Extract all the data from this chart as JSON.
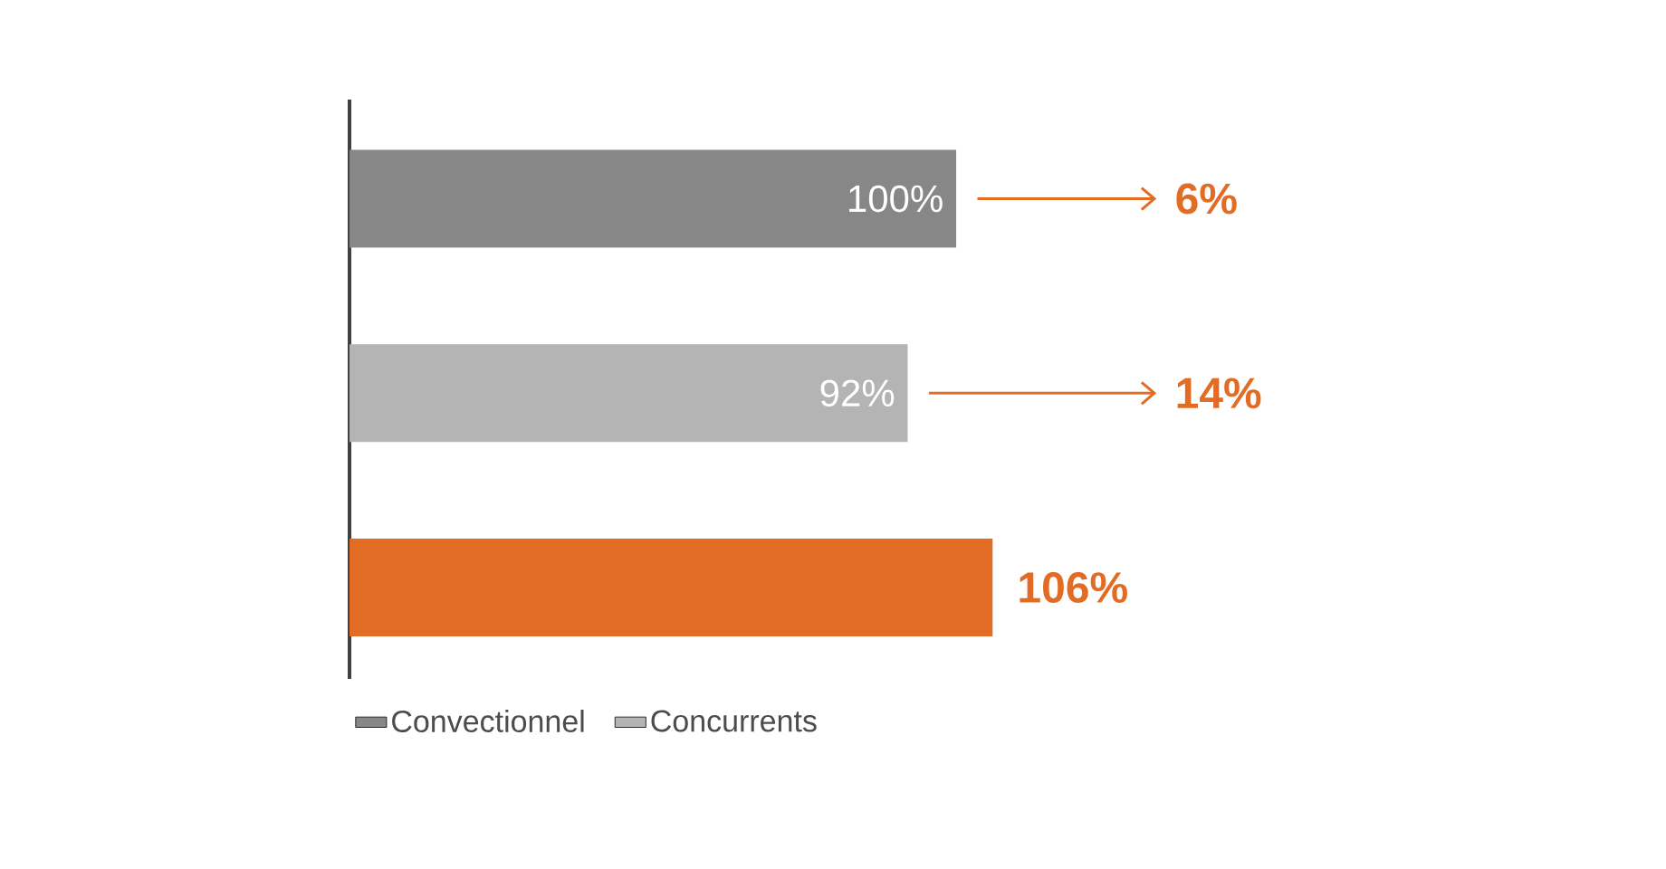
{
  "chart_data": {
    "type": "bar",
    "orientation": "horizontal",
    "stacked": true,
    "categories": [
      null,
      null,
      null
    ],
    "series": [
      {
        "name": "Convectionnel",
        "color": "#878787",
        "values": [
          100,
          null,
          null
        ],
        "value_labels": [
          "100%",
          null,
          null
        ]
      },
      {
        "name": "Concurrents",
        "color": "#b4b4b4",
        "values": [
          null,
          92,
          null
        ],
        "value_labels": [
          null,
          "92%",
          null
        ]
      },
      {
        "color": "#e36c25",
        "values": [
          null,
          null,
          106
        ],
        "value_labels": [
          null,
          null,
          "106%"
        ]
      }
    ],
    "annotations": [
      "6%",
      "14%"
    ],
    "legend": "bottom"
  }
}
